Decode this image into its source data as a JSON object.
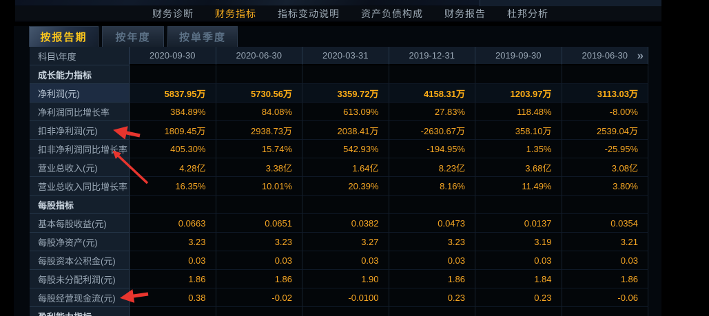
{
  "nav": {
    "items": [
      {
        "label": "财务诊断",
        "active": false
      },
      {
        "label": "财务指标",
        "active": true
      },
      {
        "label": "指标变动说明",
        "active": false
      },
      {
        "label": "资产负债构成",
        "active": false
      },
      {
        "label": "财务报告",
        "active": false
      },
      {
        "label": "杜邦分析",
        "active": false
      }
    ]
  },
  "tabs": [
    {
      "label": "按报告期",
      "active": true
    },
    {
      "label": "按年度",
      "active": false
    },
    {
      "label": "按单季度",
      "active": false
    }
  ],
  "table": {
    "corner_label": "科目\\年度",
    "columns": [
      "2020-09-30",
      "2020-06-30",
      "2020-03-31",
      "2019-12-31",
      "2019-09-30",
      "2019-06-30"
    ],
    "next_icon": "»",
    "rows": [
      {
        "type": "section",
        "label": "成长能力指标",
        "values": [
          "",
          "",
          "",
          "",
          "",
          ""
        ]
      },
      {
        "type": "data",
        "label": "净利润(元)",
        "highlight": true,
        "values": [
          "5837.95万",
          "5730.56万",
          "3359.72万",
          "4158.31万",
          "1203.97万",
          "3113.03万"
        ]
      },
      {
        "type": "data",
        "label": "净利润同比增长率",
        "values": [
          "384.89%",
          "84.08%",
          "613.09%",
          "27.83%",
          "118.48%",
          "-8.00%"
        ]
      },
      {
        "type": "data",
        "label": "扣非净利润(元)",
        "values": [
          "1809.45万",
          "2938.73万",
          "2038.41万",
          "-2630.67万",
          "358.10万",
          "2539.04万"
        ]
      },
      {
        "type": "data",
        "label": "扣非净利润同比增长率",
        "values": [
          "405.30%",
          "15.74%",
          "542.93%",
          "-194.95%",
          "1.35%",
          "-25.95%"
        ]
      },
      {
        "type": "data",
        "label": "营业总收入(元)",
        "values": [
          "4.28亿",
          "3.38亿",
          "1.64亿",
          "8.23亿",
          "3.68亿",
          "3.08亿"
        ]
      },
      {
        "type": "data",
        "label": "营业总收入同比增长率",
        "values": [
          "16.35%",
          "10.01%",
          "20.39%",
          "8.16%",
          "11.49%",
          "3.80%"
        ]
      },
      {
        "type": "section",
        "label": "每股指标",
        "values": [
          "",
          "",
          "",
          "",
          "",
          ""
        ]
      },
      {
        "type": "data",
        "label": "基本每股收益(元)",
        "values": [
          "0.0663",
          "0.0651",
          "0.0382",
          "0.0473",
          "0.0137",
          "0.0354"
        ]
      },
      {
        "type": "data",
        "label": "每股净资产(元)",
        "values": [
          "3.23",
          "3.23",
          "3.27",
          "3.23",
          "3.19",
          "3.21"
        ]
      },
      {
        "type": "data",
        "label": "每股资本公积金(元)",
        "values": [
          "0.03",
          "0.03",
          "0.03",
          "0.03",
          "0.03",
          "0.03"
        ]
      },
      {
        "type": "data",
        "label": "每股未分配利润(元)",
        "values": [
          "1.86",
          "1.86",
          "1.90",
          "1.86",
          "1.84",
          "1.86"
        ]
      },
      {
        "type": "data",
        "label": "每股经营现金流(元)",
        "values": [
          "0.38",
          "-0.02",
          "-0.0100",
          "0.23",
          "0.23",
          "-0.06"
        ]
      },
      {
        "type": "section",
        "label": "盈利能力指标",
        "values": [
          "",
          "",
          "",
          "",
          "",
          ""
        ]
      }
    ]
  },
  "colors": {
    "value_orange": "#F5A623",
    "highlight_orange": "#FFAE16",
    "nav_active_orange": "#F0A81E",
    "tab_active_yellow": "#FDC71C",
    "arrow_red": "#E8352E",
    "panel_bg": "#04080D",
    "cell_bg": "#030609",
    "label_cell_bg": "#141F2C"
  }
}
